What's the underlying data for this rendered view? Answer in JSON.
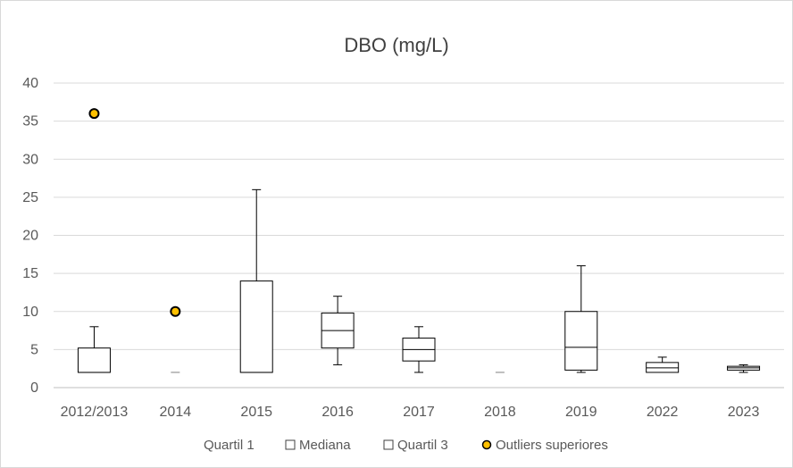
{
  "chart_data": {
    "type": "box",
    "title": "DBO (mg/L)",
    "xlabel": "",
    "ylabel": "",
    "ylim": [
      0,
      40
    ],
    "yticks": [
      0,
      5,
      10,
      15,
      20,
      25,
      30,
      35,
      40
    ],
    "grid": true,
    "legend_position": "bottom",
    "categories": [
      "2012/2013",
      "2014",
      "2015",
      "2016",
      "2017",
      "2018",
      "2019",
      "2022",
      "2023"
    ],
    "series": [
      {
        "name": "Quartil 1",
        "values": [
          2,
          2,
          2,
          5.2,
          3.5,
          2,
          2.3,
          2,
          2.3
        ]
      },
      {
        "name": "Mediana",
        "values": [
          2,
          2,
          2,
          7.5,
          5,
          2,
          5.3,
          2.6,
          2.6
        ]
      },
      {
        "name": "Quartil 3",
        "values": [
          5.2,
          2,
          14,
          9.8,
          6.5,
          2,
          10,
          3.3,
          2.8
        ]
      },
      {
        "name": "Outliers superiores",
        "values": [
          36,
          10,
          null,
          null,
          null,
          null,
          null,
          null,
          null
        ]
      }
    ],
    "whisker_low": [
      2,
      2,
      2,
      3,
      2,
      2,
      2,
      2,
      2
    ],
    "whisker_high": [
      8,
      2,
      26,
      12,
      8,
      2,
      16,
      4,
      3
    ],
    "colors": {
      "outlier_fill": "#ffc000",
      "outlier_stroke": "#000000",
      "box_stroke": "#000000",
      "grid": "#d9d9d9",
      "axis": "#bfbfbf"
    }
  }
}
